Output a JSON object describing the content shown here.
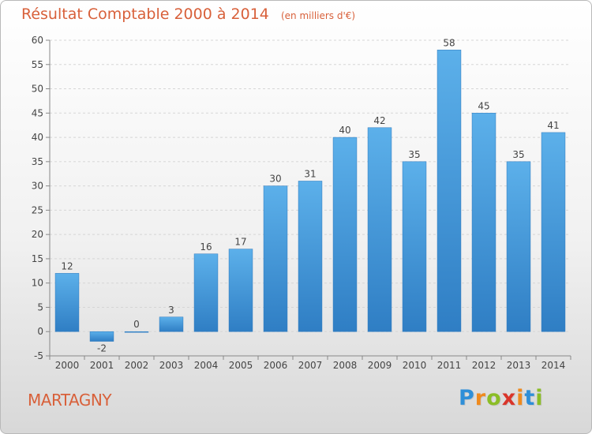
{
  "chart_data": {
    "type": "bar",
    "title": "Résultat Comptable 2000 à 2014",
    "subtitle": "(en milliers d'€)",
    "categories": [
      "2000",
      "2001",
      "2002",
      "2003",
      "2004",
      "2005",
      "2006",
      "2007",
      "2008",
      "2009",
      "2010",
      "2011",
      "2012",
      "2013",
      "2014"
    ],
    "values": [
      12,
      -2,
      0,
      3,
      16,
      17,
      30,
      31,
      40,
      42,
      35,
      58,
      45,
      35,
      41
    ],
    "ylim": [
      -5,
      60
    ],
    "yticks": [
      -5,
      0,
      5,
      10,
      15,
      20,
      25,
      30,
      35,
      40,
      45,
      50,
      55,
      60
    ],
    "grid": true,
    "bar_color": "#4a9fe0",
    "title_color": "#d8603a"
  },
  "footer": {
    "commune": "MARTAGNY",
    "brand": "Proxiti"
  }
}
